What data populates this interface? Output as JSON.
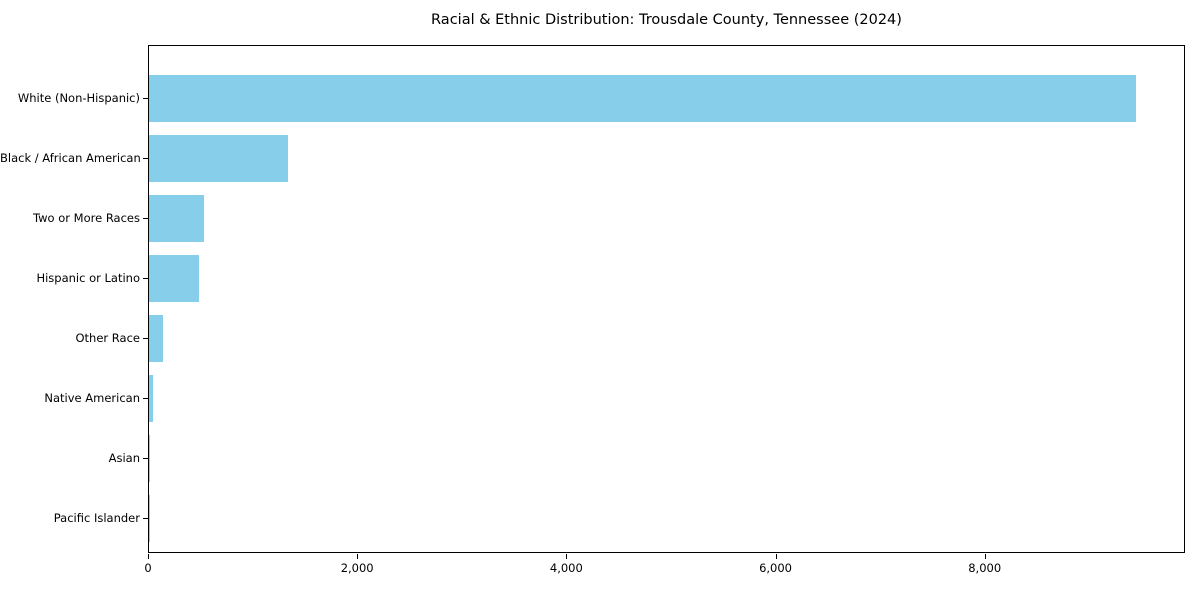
{
  "chart_data": {
    "type": "bar",
    "orientation": "horizontal",
    "title": "Racial & Ethnic Distribution: Trousdale County, Tennessee (2024)",
    "categories": [
      "White (Non-Hispanic)",
      "Black / African American",
      "Two or More Races",
      "Hispanic or Latino",
      "Other Race",
      "Native American",
      "Asian",
      "Pacific Islander"
    ],
    "values": [
      9440,
      1330,
      525,
      480,
      135,
      35,
      10,
      3
    ],
    "xlabel": "",
    "ylabel": "",
    "xlim": [
      0,
      9915
    ],
    "x_ticks": [
      0,
      2000,
      4000,
      6000,
      8000
    ],
    "x_tick_labels": [
      "0",
      "2,000",
      "4,000",
      "6,000",
      "8,000"
    ],
    "bar_color": "#87CEEB",
    "axis_color": "#000000",
    "background_color": "#ffffff",
    "grid": false,
    "legend": null
  }
}
